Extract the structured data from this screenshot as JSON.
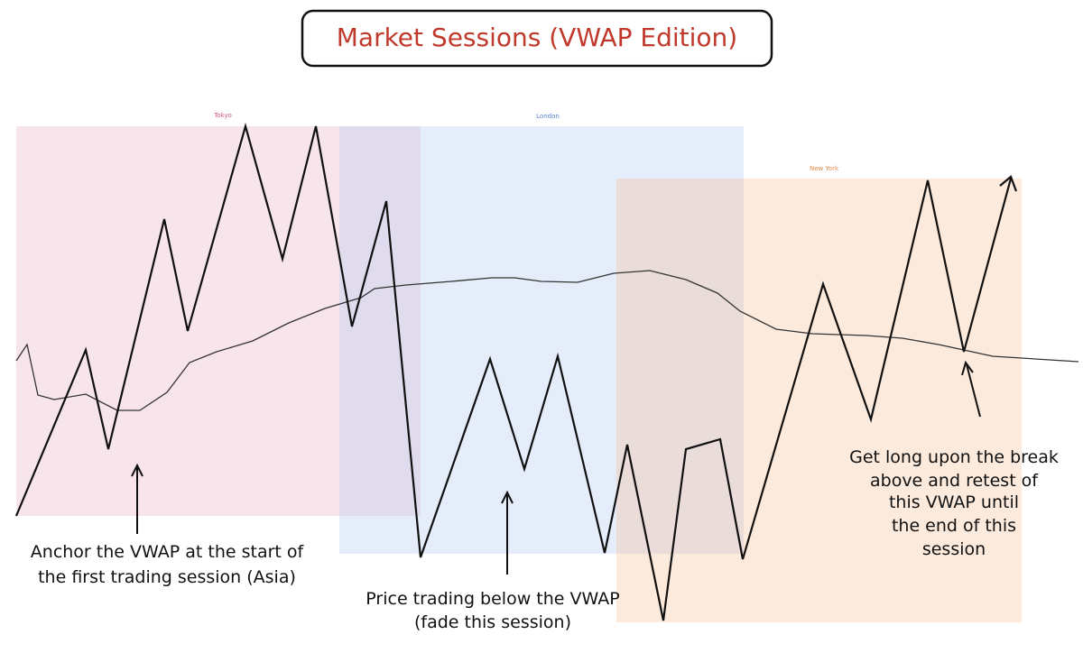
{
  "title": "Market Sessions (VWAP Edition)",
  "sessions": [
    {
      "label": "Tokyo"
    },
    {
      "label": "London"
    },
    {
      "label": "New York"
    }
  ],
  "annotations": [
    {
      "lines": [
        "Anchor the VWAP at the start of",
        "the first trading session (Asia)"
      ]
    },
    {
      "lines": [
        "Price trading below the VWAP",
        "(fade this session)"
      ]
    },
    {
      "lines": [
        "Get long upon the break",
        "above and retest of",
        "this VWAP until",
        "the end of this",
        "session"
      ]
    }
  ]
}
